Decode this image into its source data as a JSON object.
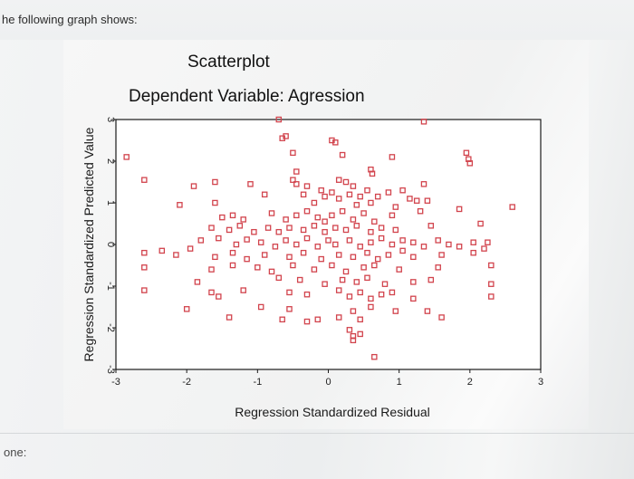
{
  "question": {
    "text": "he following graph shows:"
  },
  "answer": {
    "label": "one:"
  },
  "colors": {
    "marker": "#d2444d",
    "frame": "#1a1a1a",
    "plot_bg": "#ffffff"
  },
  "chart_data": {
    "type": "scatter",
    "title": "Scatterplot",
    "subtitle": "Dependent Variable: Agression",
    "xlabel": "Regression Standardized Residual",
    "ylabel": "Regression Standardized Predicted Value",
    "xlim": [
      -3,
      3
    ],
    "ylim": [
      -3,
      3
    ],
    "xticks": [
      "-3",
      "-2",
      "-1",
      "0",
      "1",
      "2",
      "3"
    ],
    "yticks": [
      "-3",
      "-2",
      "-1",
      "0",
      "1",
      "2",
      "3"
    ],
    "marker": "open-square",
    "grid": false,
    "legend": "none",
    "points": [
      {
        "x": -0.7,
        "y": 3.0
      },
      {
        "x": 1.35,
        "y": 2.95
      },
      {
        "x": -0.6,
        "y": 2.6
      },
      {
        "x": -0.65,
        "y": 2.55
      },
      {
        "x": 0.05,
        "y": 2.5
      },
      {
        "x": 0.1,
        "y": 2.45
      },
      {
        "x": -2.85,
        "y": 2.1
      },
      {
        "x": -0.5,
        "y": 2.2
      },
      {
        "x": 0.2,
        "y": 2.15
      },
      {
        "x": 0.9,
        "y": 2.1
      },
      {
        "x": 1.95,
        "y": 2.2
      },
      {
        "x": 1.98,
        "y": 2.05
      },
      {
        "x": 2.0,
        "y": 1.95
      },
      {
        "x": -0.45,
        "y": 1.75
      },
      {
        "x": 0.6,
        "y": 1.8
      },
      {
        "x": 0.62,
        "y": 1.7
      },
      {
        "x": -2.6,
        "y": 1.55
      },
      {
        "x": -1.9,
        "y": 1.4
      },
      {
        "x": -1.6,
        "y": 1.5
      },
      {
        "x": -1.1,
        "y": 1.45
      },
      {
        "x": -0.5,
        "y": 1.55
      },
      {
        "x": -0.45,
        "y": 1.45
      },
      {
        "x": -0.3,
        "y": 1.4
      },
      {
        "x": 0.15,
        "y": 1.55
      },
      {
        "x": 0.25,
        "y": 1.5
      },
      {
        "x": 0.35,
        "y": 1.4
      },
      {
        "x": 1.35,
        "y": 1.45
      },
      {
        "x": 1.05,
        "y": 1.3
      },
      {
        "x": -0.9,
        "y": 1.2
      },
      {
        "x": -0.35,
        "y": 1.2
      },
      {
        "x": -0.1,
        "y": 1.3
      },
      {
        "x": -0.05,
        "y": 1.15
      },
      {
        "x": 0.05,
        "y": 1.25
      },
      {
        "x": 0.15,
        "y": 1.1
      },
      {
        "x": 0.3,
        "y": 1.2
      },
      {
        "x": 0.45,
        "y": 1.15
      },
      {
        "x": 0.55,
        "y": 1.3
      },
      {
        "x": 0.7,
        "y": 1.15
      },
      {
        "x": 0.85,
        "y": 1.25
      },
      {
        "x": 1.15,
        "y": 1.1
      },
      {
        "x": 1.25,
        "y": 1.05
      },
      {
        "x": 1.4,
        "y": 1.05
      },
      {
        "x": -2.1,
        "y": 0.95
      },
      {
        "x": -1.6,
        "y": 1.0
      },
      {
        "x": -0.2,
        "y": 1.0
      },
      {
        "x": 0.4,
        "y": 0.95
      },
      {
        "x": 0.6,
        "y": 1.0
      },
      {
        "x": 0.95,
        "y": 0.9
      },
      {
        "x": -1.5,
        "y": 0.65
      },
      {
        "x": -1.35,
        "y": 0.7
      },
      {
        "x": -1.2,
        "y": 0.6
      },
      {
        "x": -0.8,
        "y": 0.75
      },
      {
        "x": -0.6,
        "y": 0.6
      },
      {
        "x": -0.45,
        "y": 0.7
      },
      {
        "x": -0.3,
        "y": 0.8
      },
      {
        "x": -0.15,
        "y": 0.65
      },
      {
        "x": -0.05,
        "y": 0.55
      },
      {
        "x": 0.05,
        "y": 0.7
      },
      {
        "x": 0.2,
        "y": 0.8
      },
      {
        "x": 0.35,
        "y": 0.6
      },
      {
        "x": 0.5,
        "y": 0.75
      },
      {
        "x": 0.65,
        "y": 0.55
      },
      {
        "x": 0.9,
        "y": 0.7
      },
      {
        "x": 1.3,
        "y": 0.8
      },
      {
        "x": 1.85,
        "y": 0.85
      },
      {
        "x": 2.6,
        "y": 0.9
      },
      {
        "x": -1.65,
        "y": 0.4
      },
      {
        "x": -1.4,
        "y": 0.35
      },
      {
        "x": -1.25,
        "y": 0.45
      },
      {
        "x": -1.05,
        "y": 0.3
      },
      {
        "x": -0.85,
        "y": 0.4
      },
      {
        "x": -0.7,
        "y": 0.3
      },
      {
        "x": -0.55,
        "y": 0.4
      },
      {
        "x": -0.35,
        "y": 0.35
      },
      {
        "x": -0.2,
        "y": 0.45
      },
      {
        "x": -0.05,
        "y": 0.3
      },
      {
        "x": 0.1,
        "y": 0.4
      },
      {
        "x": 0.25,
        "y": 0.35
      },
      {
        "x": 0.4,
        "y": 0.45
      },
      {
        "x": 0.6,
        "y": 0.3
      },
      {
        "x": 0.75,
        "y": 0.4
      },
      {
        "x": 0.95,
        "y": 0.35
      },
      {
        "x": 1.45,
        "y": 0.45
      },
      {
        "x": 2.15,
        "y": 0.5
      },
      {
        "x": -1.8,
        "y": 0.1
      },
      {
        "x": -1.55,
        "y": 0.15
      },
      {
        "x": -1.3,
        "y": 0.0
      },
      {
        "x": -1.15,
        "y": 0.12
      },
      {
        "x": -0.95,
        "y": 0.05
      },
      {
        "x": -0.75,
        "y": -0.05
      },
      {
        "x": -0.6,
        "y": 0.1
      },
      {
        "x": -0.45,
        "y": 0.0
      },
      {
        "x": -0.3,
        "y": 0.15
      },
      {
        "x": -0.15,
        "y": -0.05
      },
      {
        "x": 0.0,
        "y": 0.1
      },
      {
        "x": 0.1,
        "y": 0.0
      },
      {
        "x": 0.3,
        "y": 0.1
      },
      {
        "x": 0.45,
        "y": -0.05
      },
      {
        "x": 0.6,
        "y": 0.05
      },
      {
        "x": 0.75,
        "y": 0.15
      },
      {
        "x": 0.9,
        "y": 0.0
      },
      {
        "x": 1.05,
        "y": 0.1
      },
      {
        "x": 1.2,
        "y": 0.05
      },
      {
        "x": 1.35,
        "y": -0.05
      },
      {
        "x": 1.55,
        "y": 0.1
      },
      {
        "x": 1.7,
        "y": 0.0
      },
      {
        "x": 1.85,
        "y": -0.05
      },
      {
        "x": 2.05,
        "y": 0.05
      },
      {
        "x": 2.2,
        "y": -0.1
      },
      {
        "x": 2.25,
        "y": 0.05
      },
      {
        "x": -2.6,
        "y": -0.2
      },
      {
        "x": -2.35,
        "y": -0.15
      },
      {
        "x": -2.15,
        "y": -0.25
      },
      {
        "x": -1.95,
        "y": -0.1
      },
      {
        "x": -1.6,
        "y": -0.3
      },
      {
        "x": -1.35,
        "y": -0.2
      },
      {
        "x": -1.15,
        "y": -0.35
      },
      {
        "x": -0.9,
        "y": -0.25
      },
      {
        "x": -0.55,
        "y": -0.3
      },
      {
        "x": -0.35,
        "y": -0.2
      },
      {
        "x": -0.1,
        "y": -0.35
      },
      {
        "x": 0.15,
        "y": -0.25
      },
      {
        "x": 0.35,
        "y": -0.3
      },
      {
        "x": 0.55,
        "y": -0.2
      },
      {
        "x": 0.7,
        "y": -0.35
      },
      {
        "x": 0.85,
        "y": -0.25
      },
      {
        "x": 1.05,
        "y": -0.15
      },
      {
        "x": 1.2,
        "y": -0.3
      },
      {
        "x": 1.6,
        "y": -0.25
      },
      {
        "x": 2.05,
        "y": -0.2
      },
      {
        "x": -2.6,
        "y": -0.55
      },
      {
        "x": -1.65,
        "y": -0.6
      },
      {
        "x": -1.35,
        "y": -0.5
      },
      {
        "x": -1.0,
        "y": -0.55
      },
      {
        "x": -0.8,
        "y": -0.65
      },
      {
        "x": -0.5,
        "y": -0.5
      },
      {
        "x": -0.2,
        "y": -0.6
      },
      {
        "x": 0.05,
        "y": -0.5
      },
      {
        "x": 0.25,
        "y": -0.65
      },
      {
        "x": 0.5,
        "y": -0.55
      },
      {
        "x": 0.65,
        "y": -0.5
      },
      {
        "x": 1.0,
        "y": -0.6
      },
      {
        "x": 1.55,
        "y": -0.55
      },
      {
        "x": 2.3,
        "y": -0.5
      },
      {
        "x": -1.85,
        "y": -0.9
      },
      {
        "x": -0.7,
        "y": -0.8
      },
      {
        "x": -0.4,
        "y": -0.85
      },
      {
        "x": -0.05,
        "y": -0.95
      },
      {
        "x": 0.2,
        "y": -0.85
      },
      {
        "x": 0.4,
        "y": -0.9
      },
      {
        "x": 0.55,
        "y": -0.8
      },
      {
        "x": 0.8,
        "y": -0.95
      },
      {
        "x": 1.2,
        "y": -0.9
      },
      {
        "x": 1.45,
        "y": -0.85
      },
      {
        "x": 2.3,
        "y": -0.95
      },
      {
        "x": -2.6,
        "y": -1.1
      },
      {
        "x": -1.65,
        "y": -1.15
      },
      {
        "x": -1.55,
        "y": -1.25
      },
      {
        "x": -1.2,
        "y": -1.1
      },
      {
        "x": -0.55,
        "y": -1.15
      },
      {
        "x": -0.3,
        "y": -1.2
      },
      {
        "x": 0.15,
        "y": -1.1
      },
      {
        "x": 0.3,
        "y": -1.25
      },
      {
        "x": 0.45,
        "y": -1.15
      },
      {
        "x": 0.6,
        "y": -1.3
      },
      {
        "x": 0.75,
        "y": -1.2
      },
      {
        "x": 0.9,
        "y": -1.15
      },
      {
        "x": 1.2,
        "y": -1.3
      },
      {
        "x": 2.3,
        "y": -1.25
      },
      {
        "x": -2.0,
        "y": -1.55
      },
      {
        "x": -0.95,
        "y": -1.5
      },
      {
        "x": -0.55,
        "y": -1.55
      },
      {
        "x": 0.35,
        "y": -1.6
      },
      {
        "x": 0.6,
        "y": -1.5
      },
      {
        "x": 0.95,
        "y": -1.6
      },
      {
        "x": 1.4,
        "y": -1.6
      },
      {
        "x": -1.4,
        "y": -1.75
      },
      {
        "x": -0.65,
        "y": -1.8
      },
      {
        "x": -0.3,
        "y": -1.85
      },
      {
        "x": -0.15,
        "y": -1.8
      },
      {
        "x": 0.15,
        "y": -1.75
      },
      {
        "x": 0.45,
        "y": -1.8
      },
      {
        "x": 1.6,
        "y": -1.75
      },
      {
        "x": 0.3,
        "y": -2.05
      },
      {
        "x": 0.35,
        "y": -2.2
      },
      {
        "x": 0.45,
        "y": -2.15
      },
      {
        "x": 0.35,
        "y": -2.3
      },
      {
        "x": 0.65,
        "y": -2.7
      }
    ]
  }
}
